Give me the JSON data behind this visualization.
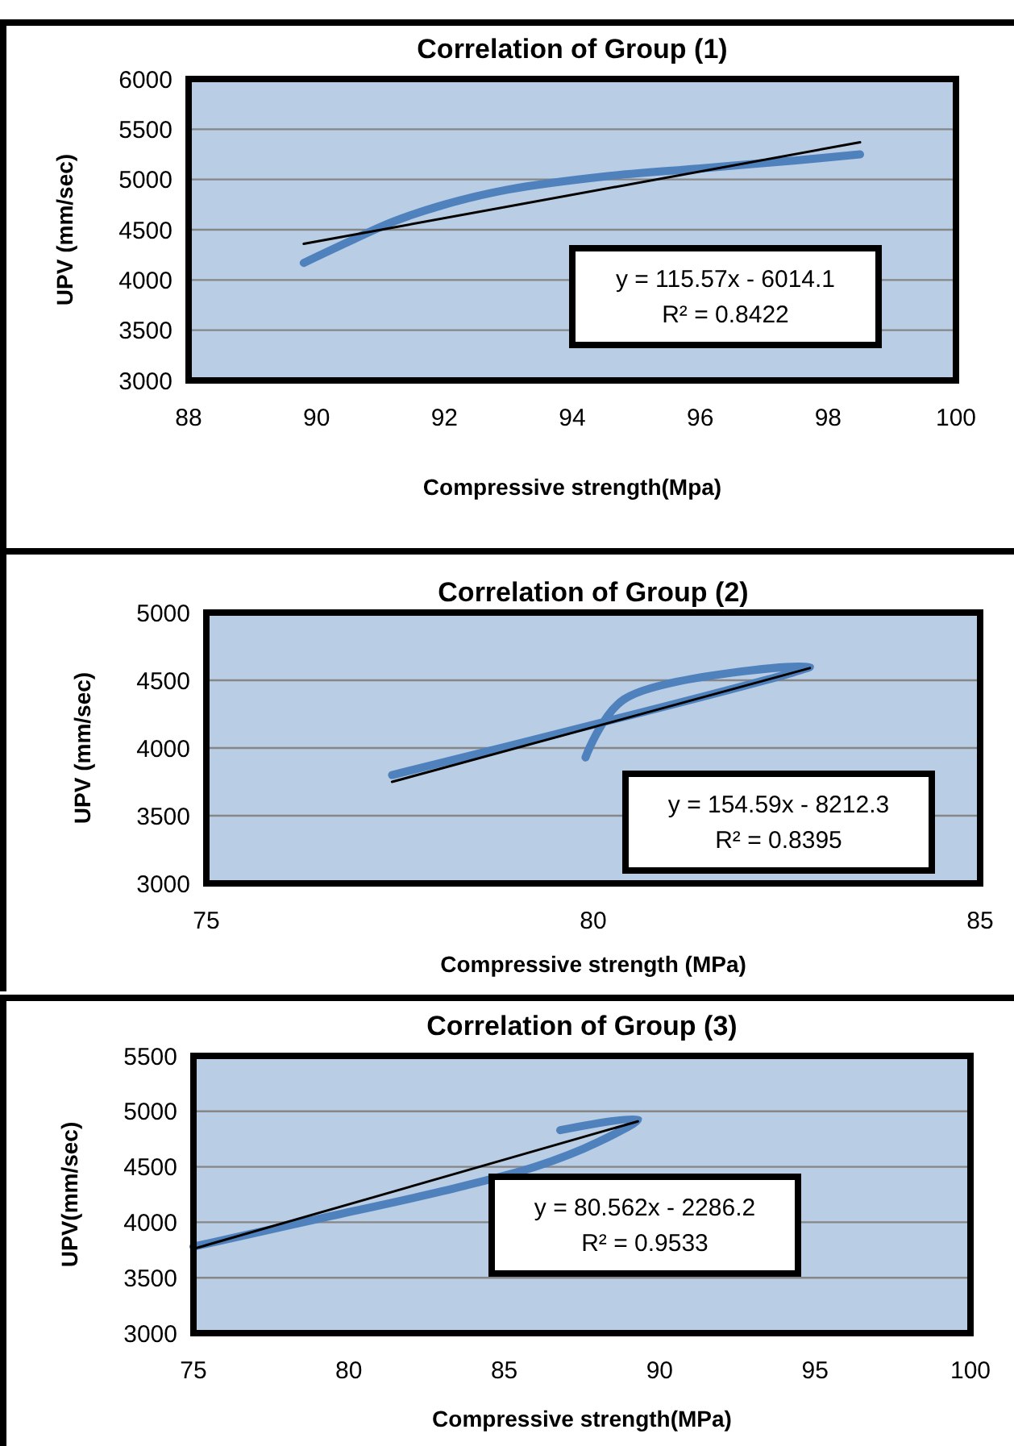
{
  "chart_data": [
    {
      "type": "line",
      "title": "Correlation of Group (1)",
      "xlabel": "Compressive strength(Mpa)",
      "ylabel": "UPV (mm/sec)",
      "xlim": [
        88,
        100
      ],
      "xticks": [
        88,
        90,
        92,
        94,
        96,
        98,
        100
      ],
      "ylim": [
        3000,
        6000
      ],
      "yticks": [
        3000,
        3500,
        4000,
        4500,
        5000,
        5500,
        6000
      ],
      "grid": "y",
      "annotations": [
        "y = 115.57x - 6014.1",
        "R² = 0.8422"
      ],
      "series": [
        {
          "color": "#4f81bd",
          "x": [
            89.8,
            90.5,
            91.2,
            92,
            93,
            94.5,
            96,
            97.5,
            98.5
          ],
          "values": [
            4170,
            4380,
            4580,
            4750,
            4900,
            5030,
            5110,
            5190,
            5250
          ]
        },
        {
          "color": "#000000",
          "x": [
            89.8,
            98.5
          ],
          "values": [
            4360,
            5370
          ]
        }
      ]
    },
    {
      "type": "line",
      "title": "Correlation of Group (2)",
      "xlabel": "Compressive strength (MPa)",
      "ylabel": "UPV (mm/sec)",
      "xlim": [
        75,
        85
      ],
      "xticks": [
        75,
        80,
        85
      ],
      "ylim": [
        3000,
        5000
      ],
      "yticks": [
        3000,
        3500,
        4000,
        4500,
        5000
      ],
      "grid": "y",
      "annotations": [
        "y = 154.59x - 8212.3",
        "R² = 0.8395"
      ],
      "series": [
        {
          "color": "#4f81bd",
          "x": [
            77.4,
            82.8,
            80.4,
            79.9
          ],
          "values": [
            3800,
            4600,
            4360,
            3930
          ]
        },
        {
          "color": "#000000",
          "x": [
            77.4,
            82.8
          ],
          "values": [
            3750,
            4590
          ]
        }
      ]
    },
    {
      "type": "line",
      "title": "Correlation of Group (3)",
      "xlabel": "Compressive strength(MPa)",
      "ylabel": "UPV(mm/sec)",
      "xlim": [
        75,
        100
      ],
      "xticks": [
        75,
        80,
        85,
        90,
        95,
        100
      ],
      "ylim": [
        3000,
        5500
      ],
      "yticks": [
        3000,
        3500,
        4000,
        4500,
        5000,
        5500
      ],
      "grid": "y",
      "annotations": [
        "y = 80.562x - 2286.2",
        "R² = 0.9533"
      ],
      "series": [
        {
          "color": "#4f81bd",
          "x": [
            75,
            79,
            83,
            86,
            88,
            89.3,
            86.8
          ],
          "values": [
            3780,
            4030,
            4280,
            4500,
            4720,
            4930,
            4830
          ]
        },
        {
          "color": "#000000",
          "x": [
            75,
            89.3
          ],
          "values": [
            3760,
            4910
          ]
        }
      ]
    }
  ]
}
